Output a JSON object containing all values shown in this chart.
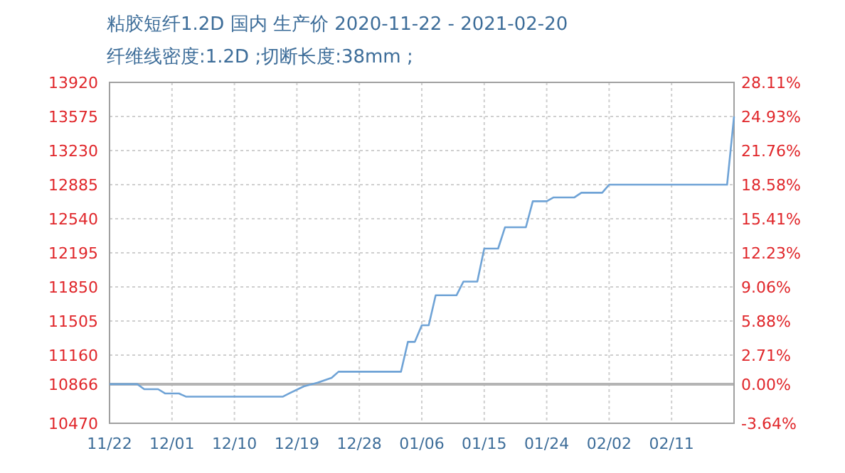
{
  "chart_data": {
    "type": "line",
    "title": "粘胶短纤1.2D 国内 生产价 2020-11-22 - 2021-02-20",
    "subtitle": "纤维线密度:1.2D ;切断长度:38mm ;",
    "x": [
      "2020-11-22",
      "2020-11-26",
      "2020-11-27",
      "2020-11-29",
      "2020-11-30",
      "2020-12-02",
      "2020-12-03",
      "2020-12-17",
      "2020-12-18",
      "2020-12-20",
      "2020-12-22",
      "2020-12-24",
      "2020-12-25",
      "2021-01-03",
      "2021-01-04",
      "2021-01-05",
      "2021-01-06",
      "2021-01-07",
      "2021-01-08",
      "2021-01-11",
      "2021-01-12",
      "2021-01-14",
      "2021-01-15",
      "2021-01-17",
      "2021-01-18",
      "2021-01-21",
      "2021-01-22",
      "2021-01-24",
      "2021-01-25",
      "2021-01-28",
      "2021-01-29",
      "2021-02-01",
      "2021-02-02",
      "2021-02-19",
      "2021-02-20"
    ],
    "series": [
      {
        "color": "#6fa3d6",
        "values": [
          10866,
          10866,
          10815,
          10815,
          10772,
          10772,
          10740,
          10740,
          10776,
          10844,
          10882,
          10930,
          10992,
          10992,
          11294,
          11294,
          11462,
          11462,
          11765,
          11765,
          11904,
          11904,
          12238,
          12238,
          12454,
          12454,
          12717,
          12717,
          12756,
          12756,
          12803,
          12803,
          12885,
          12885,
          13575
        ]
      }
    ],
    "xlim": [
      "2020-11-22",
      "2021-02-20"
    ],
    "xticks": [
      {
        "value": "2020-11-22",
        "label": "11/22"
      },
      {
        "value": "2020-12-01",
        "label": "12/01"
      },
      {
        "value": "2020-12-10",
        "label": "12/10"
      },
      {
        "value": "2020-12-19",
        "label": "12/19"
      },
      {
        "value": "2020-12-28",
        "label": "12/28"
      },
      {
        "value": "2021-01-06",
        "label": "01/06"
      },
      {
        "value": "2021-01-15",
        "label": "01/15"
      },
      {
        "value": "2021-01-24",
        "label": "01/24"
      },
      {
        "value": "2021-02-02",
        "label": "02/02"
      },
      {
        "value": "2021-02-11",
        "label": "02/11"
      }
    ],
    "ylim": [
      10470,
      13920
    ],
    "yticks": [
      13920,
      13575,
      13230,
      12885,
      12540,
      12195,
      11850,
      11505,
      11160,
      10866,
      10470
    ],
    "y2lim": [
      -3.64,
      28.11
    ],
    "y2ticks": [
      {
        "value": 28.11,
        "label": "28.11%"
      },
      {
        "value": 24.93,
        "label": "24.93%"
      },
      {
        "value": 21.76,
        "label": "21.76%"
      },
      {
        "value": 18.58,
        "label": "18.58%"
      },
      {
        "value": 15.41,
        "label": "15.41%"
      },
      {
        "value": 12.23,
        "label": "12.23%"
      },
      {
        "value": 9.06,
        "label": "9.06%"
      },
      {
        "value": 5.88,
        "label": "5.88%"
      },
      {
        "value": 2.71,
        "label": "2.71%"
      },
      {
        "value": 0,
        "label": "0.00%"
      },
      {
        "value": -3.64,
        "label": "-3.64%"
      }
    ],
    "ref_lines": [
      {
        "axis": "y",
        "value": 10866,
        "color": "#b4b4b4"
      }
    ],
    "grid": true
  }
}
